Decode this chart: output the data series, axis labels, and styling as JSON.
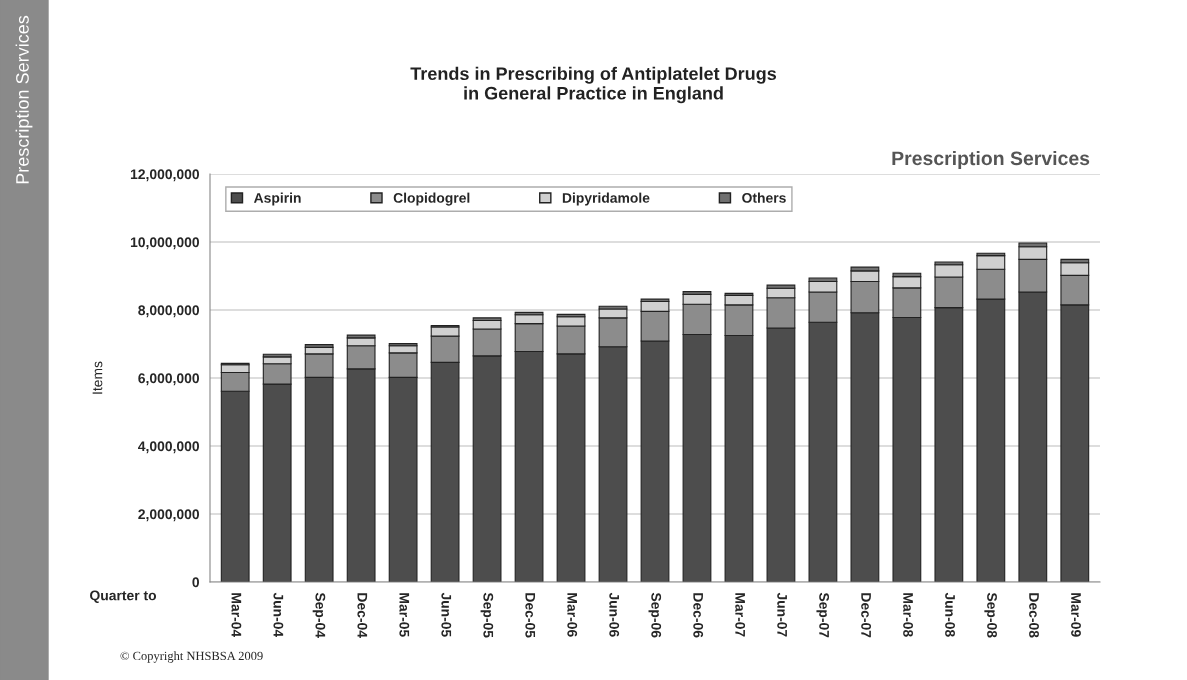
{
  "chart_data": {
    "type": "bar",
    "stacked": true,
    "title": "Trends in Prescribing of Antiplatelet Drugs\nin General Practice in England",
    "xlabel": "Quarter to",
    "ylabel": "Items",
    "categories": [
      "Mar-04",
      "Jun-04",
      "Sep-04",
      "Dec-04",
      "Mar-05",
      "Jun-05",
      "Sep-05",
      "Dec-05",
      "Mar-06",
      "Jun-06",
      "Sep-06",
      "Dec-06",
      "Mar-07",
      "Jun-07",
      "Sep-07",
      "Dec-07",
      "Mar-08",
      "Jun-08",
      "Sep-08",
      "Dec-08",
      "Mar-09"
    ],
    "series": [
      {
        "name": "Aspirin",
        "color": "#4d4d4d",
        "values": [
          5610000,
          5820000,
          6020000,
          6270000,
          6020000,
          6460000,
          6650000,
          6780000,
          6710000,
          6920000,
          7090000,
          7280000,
          7250000,
          7470000,
          7640000,
          7920000,
          7780000,
          8070000,
          8320000,
          8530000,
          8150000
        ]
      },
      {
        "name": "Clopidogrel",
        "color": "#8c8c8c",
        "values": [
          550000,
          600000,
          690000,
          680000,
          720000,
          770000,
          790000,
          820000,
          820000,
          850000,
          870000,
          890000,
          900000,
          890000,
          890000,
          920000,
          870000,
          900000,
          880000,
          960000,
          870000
        ]
      },
      {
        "name": "Dipyridamole",
        "color": "#d0d0d0",
        "values": [
          230000,
          200000,
          190000,
          230000,
          210000,
          270000,
          250000,
          260000,
          270000,
          260000,
          290000,
          290000,
          280000,
          280000,
          310000,
          310000,
          330000,
          360000,
          400000,
          370000,
          370000
        ]
      },
      {
        "name": "Others",
        "color": "#707070",
        "values": [
          40000,
          80000,
          80000,
          80000,
          60000,
          40000,
          80000,
          70000,
          70000,
          80000,
          70000,
          80000,
          60000,
          90000,
          100000,
          110000,
          100000,
          80000,
          70000,
          110000,
          100000
        ]
      }
    ],
    "ylim": [
      0,
      12000000
    ],
    "yticks": [
      0,
      {
        "value": 2000000,
        "label": "2,000,000"
      },
      {
        "value": 4000000,
        "label": "4,000,000"
      },
      {
        "value": 6000000,
        "label": "6,000,000"
      },
      {
        "value": 8000000,
        "label": "8,000,000"
      },
      {
        "value": 10000000,
        "label": "10,000,000"
      },
      {
        "value": 12000000,
        "label": "12,000,000"
      }
    ],
    "grid": "y",
    "legend": "top",
    "annotations": [
      "Prescription Services",
      "Prescription Services",
      "© Copyright NHSBSA 2009"
    ]
  }
}
